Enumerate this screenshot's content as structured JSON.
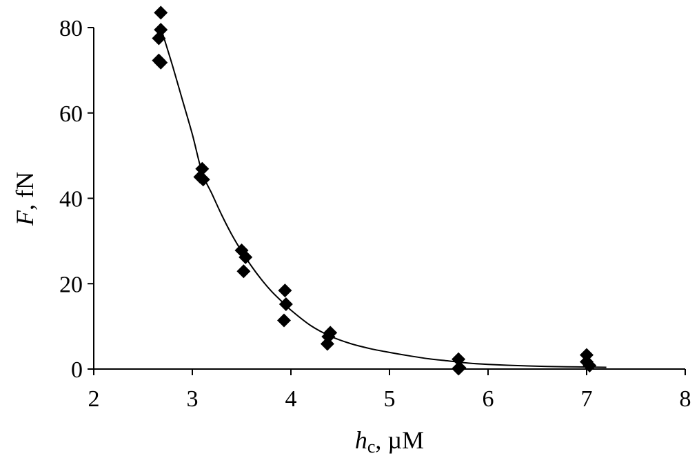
{
  "chart_data": {
    "type": "scatter",
    "xlabel": {
      "main": "h",
      "sub": "c",
      "rest": ", µM"
    },
    "ylabel": {
      "main": "F",
      "rest": ", fN"
    },
    "xlim": [
      2,
      8
    ],
    "ylim": [
      0,
      80
    ],
    "xticks": [
      "2",
      "3",
      "4",
      "5",
      "6",
      "7",
      "8"
    ],
    "yticks": [
      "0",
      "20",
      "40",
      "60",
      "80"
    ],
    "grid": false,
    "legend": "none",
    "series": [
      {
        "marker": "diamond",
        "color": "#000000",
        "points": [
          [
            2.68,
            83.5
          ],
          [
            2.68,
            79.5
          ],
          [
            2.66,
            77.5
          ],
          [
            2.66,
            72.3
          ],
          [
            2.68,
            71.8
          ],
          [
            3.1,
            46.9
          ],
          [
            3.08,
            45.0
          ],
          [
            3.11,
            44.4
          ],
          [
            3.5,
            27.8
          ],
          [
            3.54,
            26.2
          ],
          [
            3.52,
            22.9
          ],
          [
            3.94,
            18.4
          ],
          [
            3.95,
            15.2
          ],
          [
            3.93,
            11.4
          ],
          [
            4.4,
            8.5
          ],
          [
            4.38,
            7.6
          ],
          [
            4.37,
            5.9
          ],
          [
            5.7,
            2.3
          ],
          [
            5.71,
            0.3
          ],
          [
            5.7,
            0.1
          ],
          [
            7.0,
            3.3
          ],
          [
            7.0,
            1.7
          ],
          [
            7.03,
            0.8
          ]
        ]
      }
    ],
    "fit_curve": {
      "style": "line",
      "color": "#000000",
      "points": [
        [
          2.7,
          78.5
        ],
        [
          2.8,
          71.0
        ],
        [
          2.9,
          63.0
        ],
        [
          3.0,
          55.0
        ],
        [
          3.1,
          46.0
        ],
        [
          3.2,
          41.0
        ],
        [
          3.3,
          36.0
        ],
        [
          3.4,
          31.5
        ],
        [
          3.5,
          27.6
        ],
        [
          3.6,
          24.1
        ],
        [
          3.7,
          21.0
        ],
        [
          3.8,
          18.3
        ],
        [
          3.9,
          16.0
        ],
        [
          4.0,
          13.8
        ],
        [
          4.2,
          10.2
        ],
        [
          4.4,
          7.7
        ],
        [
          4.6,
          6.0
        ],
        [
          4.8,
          4.8
        ],
        [
          5.0,
          3.9
        ],
        [
          5.2,
          3.1
        ],
        [
          5.4,
          2.4
        ],
        [
          5.6,
          1.9
        ],
        [
          5.8,
          1.4
        ],
        [
          6.0,
          1.1
        ],
        [
          6.3,
          0.8
        ],
        [
          6.6,
          0.6
        ],
        [
          6.9,
          0.5
        ],
        [
          7.2,
          0.4
        ]
      ]
    }
  }
}
